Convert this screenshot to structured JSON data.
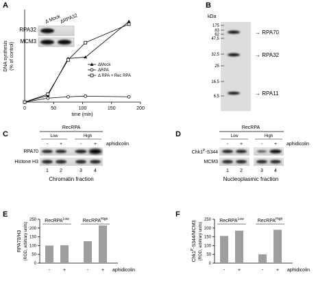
{
  "panels": {
    "a": "A",
    "b": "B",
    "c": "C",
    "d": "D",
    "e": "E",
    "f": "F"
  },
  "chart_data": [
    {
      "type": "line",
      "panel": "A",
      "xlabel": "time (min)",
      "ylabel": "DNA synthesis\n(% of control)",
      "xlim": [
        0,
        200
      ],
      "ylim": [
        0,
        70
      ],
      "xticks": [
        "0",
        "50",
        "100",
        "150",
        "200"
      ],
      "series": [
        {
          "name": "ΔMock",
          "marker": "triangle",
          "x": [
            0,
            40,
            75,
            105,
            180
          ],
          "y": [
            0,
            5,
            33,
            34,
            61
          ]
        },
        {
          "name": "ΔRPA",
          "marker": "circle",
          "x": [
            0,
            40,
            75,
            105,
            180
          ],
          "y": [
            0,
            3,
            4,
            4.5,
            4
          ]
        },
        {
          "name": "Δ RPA + Rec RPA",
          "marker": "square",
          "x": [
            0,
            40,
            75,
            105,
            180
          ],
          "y": [
            0,
            6,
            32,
            45,
            59
          ]
        }
      ]
    },
    {
      "type": "bar",
      "panel": "E",
      "ylabel": "RPA70/H3",
      "ylabel2": "(ROD, arbitrary units)",
      "ylim": [
        0,
        250
      ],
      "yticks": [
        "0",
        "50",
        "100",
        "150",
        "200",
        "250"
      ],
      "categories": [
        "-",
        "+",
        "-",
        "+"
      ],
      "values": [
        100,
        102,
        125,
        215
      ],
      "groups": [
        "RecRPA",
        "RecRPA"
      ],
      "group_sup": [
        "Low",
        "High"
      ],
      "xlabel": "aphidicolin"
    },
    {
      "type": "bar",
      "panel": "F",
      "ylabel": "Chk1",
      "ylabel_sup": "P",
      "ylabel_rest": "-S344/MCM3",
      "ylabel2": "(ROD, arbitrary units)",
      "ylim": [
        0,
        250
      ],
      "yticks": [
        "0",
        "50",
        "100",
        "150",
        "200",
        "250"
      ],
      "categories": [
        "-",
        "+",
        "-",
        "+"
      ],
      "values": [
        155,
        185,
        50,
        190
      ],
      "groups": [
        "RecRPA",
        "RecRPA"
      ],
      "group_sup": [
        "Low",
        "High"
      ],
      "xlabel": "aphidicolin"
    }
  ],
  "panel_a_inset": {
    "col1": "Δ Mock",
    "col2": "ΔRPA32",
    "row1": "RPA32",
    "row2": "MCM3"
  },
  "panel_b": {
    "kda": "kDa",
    "markers": [
      "175",
      "83",
      "62",
      "47,5",
      "32,5",
      "25",
      "16,5",
      "6,5"
    ],
    "bands": [
      "RPA70",
      "RPA32",
      "RPA11"
    ]
  },
  "panel_c": {
    "header": "RecRPA",
    "low": "Low",
    "high": "High",
    "signs": [
      "-",
      "+",
      "-",
      "+"
    ],
    "aph": "aphidicolin",
    "rows": [
      "RPA70",
      "Histone H3"
    ],
    "lanes": [
      "1",
      "2",
      "3",
      "4"
    ],
    "caption": "Chromatin fraction"
  },
  "panel_d": {
    "header": "RecRPA",
    "low": "Low",
    "high": "High",
    "signs": [
      "-",
      "+",
      "-",
      "+"
    ],
    "aph": "aphidicolin",
    "row1_a": "Chk1",
    "row1_sup": "P",
    "row1_b": "-S344",
    "row2": "MCM3",
    "lanes": [
      "1",
      "2",
      "3",
      "4"
    ],
    "caption": "Nucleoplasmic fraction"
  }
}
